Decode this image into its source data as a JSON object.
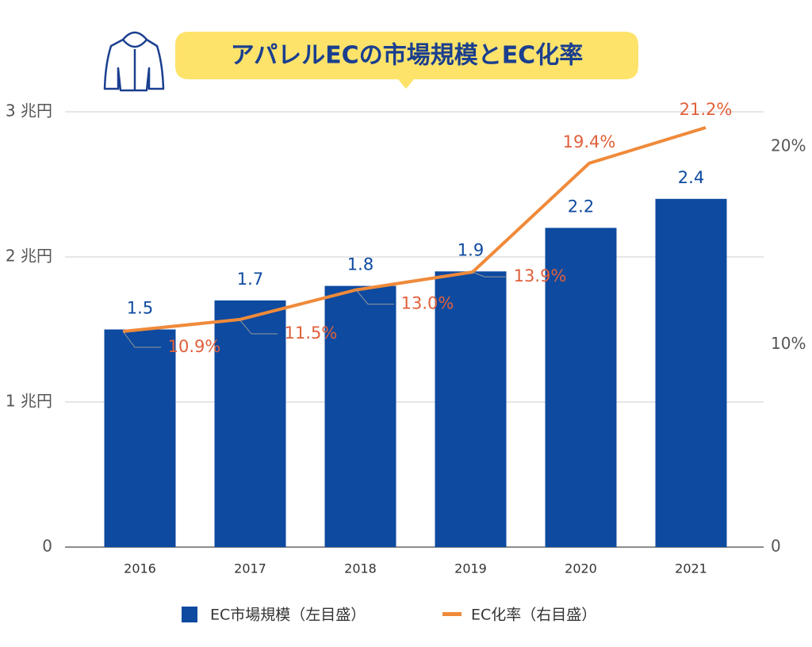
{
  "chart_data": {
    "type": "bar-line",
    "title": "アパレルECの市場規模とEC化率",
    "categories": [
      "2016",
      "2017",
      "2018",
      "2019",
      "2020",
      "2021"
    ],
    "series": [
      {
        "name": "EC市場規模（左目盛）",
        "type": "bar",
        "color": "#0d4aa0",
        "values": [
          1.5,
          1.7,
          1.8,
          1.9,
          2.2,
          2.4
        ]
      },
      {
        "name": "EC化率（右目盛）",
        "type": "line",
        "axis": "y2",
        "color": "#ef8a3a",
        "values": [
          10.9,
          11.5,
          13.0,
          13.9,
          19.4,
          21.2
        ],
        "value_labels": [
          "10.9%",
          "11.5%",
          "13.0%",
          "13.9%",
          "19.4%",
          "21.2%"
        ]
      }
    ],
    "ylim": [
      0,
      3
    ],
    "yticks": [
      0,
      {
        "value": 1,
        "label": "1 兆円"
      },
      {
        "value": 2,
        "label": "2 兆円"
      },
      {
        "value": 3,
        "label": "3 兆円"
      }
    ],
    "y2lim": [
      0,
      22
    ],
    "y2ticks": [
      0,
      {
        "value": 10,
        "label": "10%"
      },
      {
        "value": 20,
        "label": "20%"
      }
    ],
    "grid": true
  }
}
